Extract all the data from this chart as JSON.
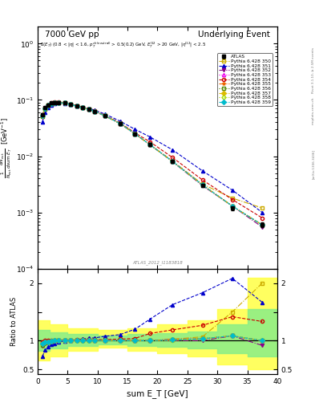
{
  "title_left": "7000 GeV pp",
  "title_right": "Underlying Event",
  "annotation": "ATLAS_2012_I1183818",
  "rivet_label": "Rivet 3.1.10, ≥ 2.5M events",
  "inspire_label": "[arXiv:1306.3436]",
  "mcplots_label": "mcplots.cern.ch",
  "xlabel": "sum E_T [GeV]",
  "ylabel_ratio": "Ratio to ATLAS",
  "xlim": [
    0,
    40
  ],
  "ylim_main": [
    0.0001,
    2.0
  ],
  "atlas_x": [
    0.75,
    1.25,
    1.75,
    2.25,
    2.75,
    3.5,
    4.5,
    5.5,
    6.5,
    7.5,
    8.5,
    9.5,
    11.25,
    13.75,
    16.25,
    18.75,
    22.5,
    27.5,
    32.5,
    37.5
  ],
  "atlas_y": [
    0.055,
    0.072,
    0.082,
    0.088,
    0.09,
    0.09,
    0.088,
    0.083,
    0.078,
    0.073,
    0.068,
    0.063,
    0.052,
    0.038,
    0.025,
    0.016,
    0.008,
    0.003,
    0.0012,
    0.0006
  ],
  "atlas_yerr": [
    0.004,
    0.004,
    0.004,
    0.004,
    0.004,
    0.004,
    0.004,
    0.003,
    0.003,
    0.003,
    0.003,
    0.003,
    0.002,
    0.002,
    0.001,
    0.001,
    0.0005,
    0.0002,
    0.0001,
    6e-05
  ],
  "series": [
    {
      "label": "Pythia 6.428 350",
      "color": "#ccaa00",
      "marker": "s",
      "fillstyle": "none",
      "linestyle": "-.",
      "x": [
        0.75,
        1.25,
        1.75,
        2.25,
        2.75,
        3.5,
        4.5,
        5.5,
        6.5,
        7.5,
        8.5,
        9.5,
        11.25,
        13.75,
        16.25,
        18.75,
        22.5,
        27.5,
        32.5,
        37.5
      ],
      "y": [
        0.052,
        0.07,
        0.081,
        0.087,
        0.09,
        0.09,
        0.088,
        0.083,
        0.078,
        0.073,
        0.068,
        0.063,
        0.052,
        0.038,
        0.025,
        0.016,
        0.0082,
        0.0032,
        0.0018,
        0.0012
      ]
    },
    {
      "label": "Pythia 6.428 351",
      "color": "#0000cc",
      "marker": "^",
      "fillstyle": "full",
      "linestyle": "--",
      "x": [
        0.75,
        1.25,
        1.75,
        2.25,
        2.75,
        3.5,
        4.5,
        5.5,
        6.5,
        7.5,
        8.5,
        9.5,
        11.25,
        13.75,
        16.25,
        18.75,
        22.5,
        27.5,
        32.5,
        37.5
      ],
      "y": [
        0.04,
        0.06,
        0.073,
        0.082,
        0.086,
        0.088,
        0.087,
        0.083,
        0.079,
        0.075,
        0.071,
        0.066,
        0.056,
        0.042,
        0.03,
        0.022,
        0.013,
        0.0055,
        0.0025,
        0.001
      ]
    },
    {
      "label": "Pythia 6.428 352",
      "color": "#880088",
      "marker": "v",
      "fillstyle": "full",
      "linestyle": "-.",
      "x": [
        0.75,
        1.25,
        1.75,
        2.25,
        2.75,
        3.5,
        4.5,
        5.5,
        6.5,
        7.5,
        8.5,
        9.5,
        11.25,
        13.75,
        16.25,
        18.75,
        22.5,
        27.5,
        32.5,
        37.5
      ],
      "y": [
        0.05,
        0.068,
        0.079,
        0.086,
        0.089,
        0.09,
        0.088,
        0.083,
        0.078,
        0.073,
        0.068,
        0.063,
        0.052,
        0.038,
        0.025,
        0.016,
        0.008,
        0.003,
        0.0013,
        0.00055
      ]
    },
    {
      "label": "Pythia 6.428 353",
      "color": "#ee00ee",
      "marker": "^",
      "fillstyle": "none",
      "linestyle": ":",
      "x": [
        0.75,
        1.25,
        1.75,
        2.25,
        2.75,
        3.5,
        4.5,
        5.5,
        6.5,
        7.5,
        8.5,
        9.5,
        11.25,
        13.75,
        16.25,
        18.75,
        22.5,
        27.5,
        32.5,
        37.5
      ],
      "y": [
        0.053,
        0.071,
        0.081,
        0.088,
        0.091,
        0.091,
        0.089,
        0.084,
        0.079,
        0.074,
        0.069,
        0.063,
        0.052,
        0.038,
        0.025,
        0.016,
        0.0082,
        0.0031,
        0.0013,
        0.0006
      ]
    },
    {
      "label": "Pythia 6.428 354",
      "color": "#cc0000",
      "marker": "o",
      "fillstyle": "none",
      "linestyle": "--",
      "x": [
        0.75,
        1.25,
        1.75,
        2.25,
        2.75,
        3.5,
        4.5,
        5.5,
        6.5,
        7.5,
        8.5,
        9.5,
        11.25,
        13.75,
        16.25,
        18.75,
        22.5,
        27.5,
        32.5,
        37.5
      ],
      "y": [
        0.054,
        0.072,
        0.082,
        0.088,
        0.091,
        0.091,
        0.089,
        0.084,
        0.079,
        0.074,
        0.069,
        0.064,
        0.053,
        0.039,
        0.026,
        0.018,
        0.0095,
        0.0038,
        0.0017,
        0.0008
      ]
    },
    {
      "label": "Pythia 6.428 355",
      "color": "#ee6600",
      "marker": "*",
      "fillstyle": "full",
      "linestyle": "-.",
      "x": [
        0.75,
        1.25,
        1.75,
        2.25,
        2.75,
        3.5,
        4.5,
        5.5,
        6.5,
        7.5,
        8.5,
        9.5,
        11.25,
        13.75,
        16.25,
        18.75,
        22.5,
        27.5,
        32.5,
        37.5
      ],
      "y": [
        0.052,
        0.07,
        0.08,
        0.087,
        0.09,
        0.09,
        0.088,
        0.083,
        0.078,
        0.073,
        0.068,
        0.063,
        0.052,
        0.038,
        0.025,
        0.016,
        0.0082,
        0.0031,
        0.0013,
        0.0006
      ]
    },
    {
      "label": "Pythia 6.428 356",
      "color": "#558800",
      "marker": "s",
      "fillstyle": "none",
      "linestyle": ":",
      "x": [
        0.75,
        1.25,
        1.75,
        2.25,
        2.75,
        3.5,
        4.5,
        5.5,
        6.5,
        7.5,
        8.5,
        9.5,
        11.25,
        13.75,
        16.25,
        18.75,
        22.5,
        27.5,
        32.5,
        37.5
      ],
      "y": [
        0.051,
        0.069,
        0.08,
        0.087,
        0.09,
        0.09,
        0.088,
        0.083,
        0.078,
        0.073,
        0.068,
        0.063,
        0.052,
        0.038,
        0.025,
        0.016,
        0.0081,
        0.0031,
        0.0013,
        0.0006
      ]
    },
    {
      "label": "Pythia 6.428 357",
      "color": "#ddbb00",
      "marker": "D",
      "fillstyle": "full",
      "linestyle": "-.",
      "x": [
        0.75,
        1.25,
        1.75,
        2.25,
        2.75,
        3.5,
        4.5,
        5.5,
        6.5,
        7.5,
        8.5,
        9.5,
        11.25,
        13.75,
        16.25,
        18.75,
        22.5,
        27.5,
        32.5,
        37.5
      ],
      "y": [
        0.052,
        0.07,
        0.08,
        0.087,
        0.09,
        0.09,
        0.088,
        0.083,
        0.078,
        0.073,
        0.068,
        0.063,
        0.052,
        0.038,
        0.025,
        0.016,
        0.0081,
        0.0031,
        0.0013,
        0.0006
      ]
    },
    {
      "label": "Pythia 6.428 358",
      "color": "#aadd00",
      "marker": "o",
      "fillstyle": "none",
      "linestyle": ":",
      "x": [
        0.75,
        1.25,
        1.75,
        2.25,
        2.75,
        3.5,
        4.5,
        5.5,
        6.5,
        7.5,
        8.5,
        9.5,
        11.25,
        13.75,
        16.25,
        18.75,
        22.5,
        27.5,
        32.5,
        37.5
      ],
      "y": [
        0.052,
        0.07,
        0.08,
        0.087,
        0.09,
        0.09,
        0.088,
        0.083,
        0.078,
        0.073,
        0.068,
        0.063,
        0.052,
        0.038,
        0.025,
        0.016,
        0.008,
        0.0031,
        0.0013,
        0.0006
      ]
    },
    {
      "label": "Pythia 6.428 359",
      "color": "#00bbcc",
      "marker": "D",
      "fillstyle": "full",
      "linestyle": "--",
      "x": [
        0.75,
        1.25,
        1.75,
        2.25,
        2.75,
        3.5,
        4.5,
        5.5,
        6.5,
        7.5,
        8.5,
        9.5,
        11.25,
        13.75,
        16.25,
        18.75,
        22.5,
        27.5,
        32.5,
        37.5
      ],
      "y": [
        0.052,
        0.07,
        0.08,
        0.087,
        0.09,
        0.09,
        0.088,
        0.083,
        0.078,
        0.073,
        0.068,
        0.063,
        0.052,
        0.038,
        0.025,
        0.016,
        0.0081,
        0.0031,
        0.0013,
        0.0006
      ]
    }
  ],
  "band_yellow_x": [
    0.0,
    2.0,
    5.0,
    10.0,
    15.0,
    20.0,
    25.0,
    30.0,
    35.0,
    40.0
  ],
  "band_yellow_lo": [
    0.65,
    0.72,
    0.82,
    0.88,
    0.82,
    0.78,
    0.72,
    0.58,
    0.5,
    0.5
  ],
  "band_yellow_hi": [
    1.35,
    1.28,
    1.22,
    1.18,
    1.22,
    1.28,
    1.35,
    1.55,
    2.1,
    2.1
  ],
  "band_green_x": [
    0.0,
    2.0,
    5.0,
    10.0,
    15.0,
    20.0,
    25.0,
    30.0,
    35.0,
    40.0
  ],
  "band_green_lo": [
    0.82,
    0.86,
    0.91,
    0.93,
    0.91,
    0.89,
    0.86,
    0.78,
    0.72,
    0.72
  ],
  "band_green_hi": [
    1.18,
    1.14,
    1.11,
    1.09,
    1.11,
    1.13,
    1.16,
    1.28,
    1.55,
    1.55
  ]
}
